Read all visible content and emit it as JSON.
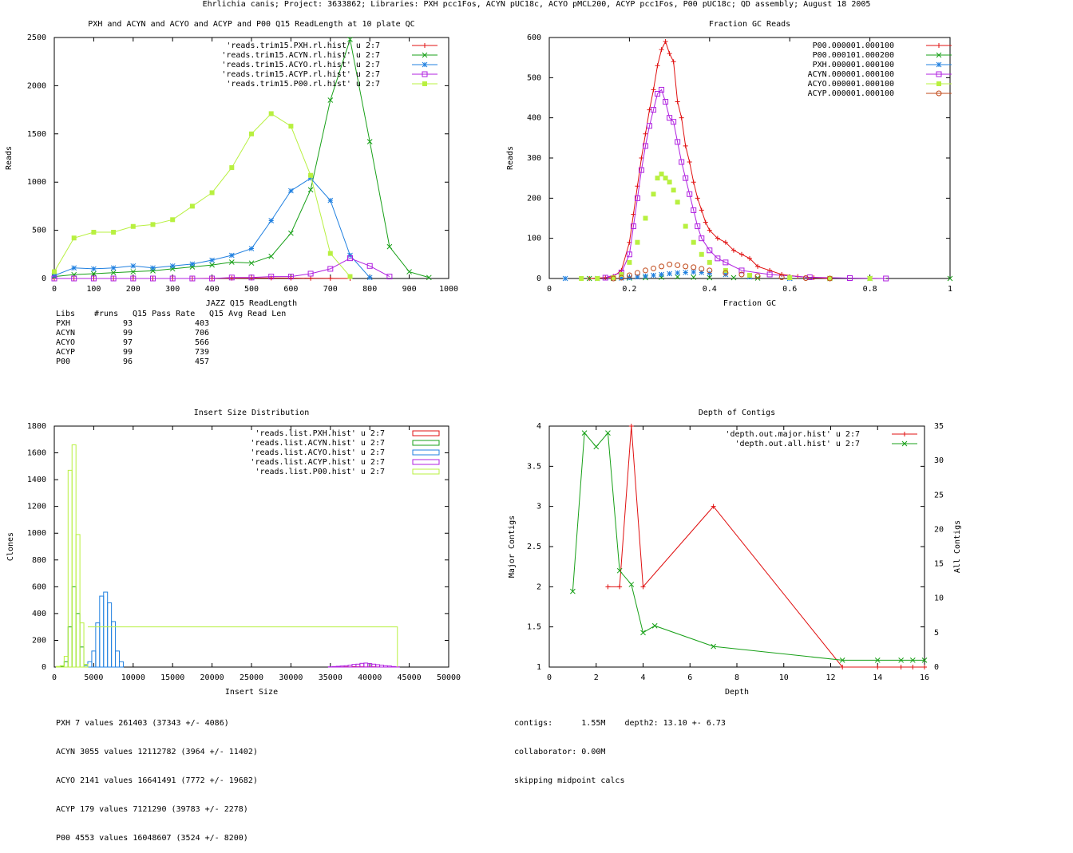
{
  "page_title": "Ehrlichia canis; Project: 3633862; Libraries: PXH pcc1Fos, ACYN pUC18c, ACYO pMCL200, ACYP pcc1Fos, P00 pUC18c; QD assembly; August 18 2005",
  "colors": {
    "red": "#e01010",
    "green": "#18a018",
    "blue": "#2080e0",
    "magenta": "#b020e0",
    "lime": "#b8f040",
    "brown": "#c04818"
  },
  "chart_data": [
    {
      "type": "line",
      "title": "PXH and ACYN and ACYO and ACYP and P00 Q15 ReadLength at 10 plate QC",
      "xlabel": "JAZZ Q15 ReadLength",
      "ylabel": "Reads",
      "xlim": [
        0,
        1000
      ],
      "ylim": [
        0,
        2500
      ],
      "xticks": [
        0,
        100,
        200,
        300,
        400,
        500,
        600,
        700,
        800,
        900,
        1000
      ],
      "yticks": [
        0,
        500,
        1000,
        1500,
        2000,
        2500
      ],
      "series": [
        {
          "name": "'reads.trim15.PXH.rl.hist' u 2:7",
          "color": "red",
          "marker": "plus",
          "x": [
            0,
            50,
            100,
            150,
            200,
            250,
            300,
            350,
            400,
            450,
            500,
            550,
            600,
            650,
            700,
            750
          ],
          "y": [
            0,
            0,
            0,
            0,
            0,
            0,
            0,
            0,
            2,
            3,
            4,
            5,
            4,
            2,
            1,
            0
          ]
        },
        {
          "name": "'reads.trim15.ACYN.rl.hist' u 2:7",
          "color": "green",
          "marker": "x",
          "x": [
            0,
            50,
            100,
            150,
            200,
            250,
            300,
            350,
            400,
            450,
            500,
            550,
            600,
            650,
            700,
            750,
            800,
            850,
            900,
            950
          ],
          "y": [
            20,
            40,
            50,
            60,
            70,
            80,
            100,
            120,
            140,
            170,
            160,
            230,
            470,
            920,
            1850,
            2480,
            1420,
            330,
            70,
            10
          ]
        },
        {
          "name": "'reads.trim15.ACYO.rl.hist' u 2:7",
          "color": "blue",
          "marker": "star",
          "x": [
            0,
            50,
            100,
            150,
            200,
            250,
            300,
            350,
            400,
            450,
            500,
            550,
            600,
            650,
            700,
            750,
            800
          ],
          "y": [
            30,
            110,
            100,
            110,
            130,
            110,
            130,
            150,
            190,
            240,
            310,
            600,
            910,
            1040,
            810,
            240,
            10
          ]
        },
        {
          "name": "'reads.trim15.ACYP.rl.hist' u 2:7",
          "color": "magenta",
          "marker": "square",
          "x": [
            0,
            50,
            100,
            150,
            200,
            250,
            300,
            350,
            400,
            450,
            500,
            550,
            600,
            650,
            700,
            750,
            800,
            850
          ],
          "y": [
            0,
            0,
            0,
            0,
            0,
            0,
            0,
            0,
            0,
            10,
            10,
            20,
            20,
            50,
            100,
            210,
            130,
            20
          ]
        },
        {
          "name": "'reads.trim15.P00.rl.hist' u 2:7",
          "color": "lime",
          "marker": "filled-square",
          "x": [
            0,
            50,
            100,
            150,
            200,
            250,
            300,
            350,
            400,
            450,
            500,
            550,
            600,
            650,
            700,
            750
          ],
          "y": [
            70,
            420,
            480,
            480,
            540,
            560,
            610,
            750,
            890,
            1150,
            1500,
            1710,
            1580,
            1070,
            260,
            20
          ]
        }
      ]
    },
    {
      "type": "scatter",
      "title": "Fraction GC Reads",
      "xlabel": "Fraction GC",
      "ylabel": "Reads",
      "xlim": [
        0,
        1
      ],
      "ylim": [
        0,
        600
      ],
      "xticks": [
        0,
        0.2,
        0.4,
        0.6,
        0.8,
        1
      ],
      "yticks": [
        0,
        100,
        200,
        300,
        400,
        500,
        600
      ],
      "series": [
        {
          "name": "P00.000001.000100",
          "color": "red",
          "marker": "plus",
          "x": [
            0.1,
            0.14,
            0.16,
            0.18,
            0.2,
            0.21,
            0.22,
            0.23,
            0.24,
            0.25,
            0.26,
            0.27,
            0.28,
            0.29,
            0.3,
            0.31,
            0.32,
            0.33,
            0.34,
            0.35,
            0.36,
            0.37,
            0.38,
            0.39,
            0.4,
            0.42,
            0.44,
            0.46,
            0.48,
            0.5,
            0.52,
            0.55,
            0.58,
            0.62,
            0.66,
            0.7
          ],
          "y": [
            0,
            2,
            5,
            20,
            90,
            160,
            230,
            300,
            360,
            420,
            470,
            530,
            570,
            590,
            560,
            540,
            440,
            400,
            330,
            290,
            240,
            200,
            170,
            140,
            120,
            100,
            90,
            70,
            60,
            50,
            30,
            20,
            10,
            5,
            2,
            0
          ]
        },
        {
          "name": "P00.000101.000200",
          "color": "green",
          "marker": "x",
          "x": [
            0.1,
            0.16,
            0.2,
            0.24,
            0.28,
            0.32,
            0.36,
            0.4,
            0.46,
            0.52,
            0.6,
            0.7,
            0.8,
            1.0
          ],
          "y": [
            0,
            0,
            1,
            2,
            3,
            4,
            3,
            2,
            2,
            1,
            1,
            0,
            0,
            0
          ]
        },
        {
          "name": "PXH.000001.000100",
          "color": "blue",
          "marker": "star",
          "x": [
            0.04,
            0.12,
            0.18,
            0.2,
            0.22,
            0.24,
            0.26,
            0.28,
            0.3,
            0.32,
            0.34,
            0.36,
            0.38,
            0.4,
            0.44,
            0.5,
            0.6
          ],
          "y": [
            0,
            0,
            1,
            2,
            4,
            6,
            8,
            10,
            12,
            14,
            15,
            16,
            15,
            13,
            10,
            4,
            0
          ]
        },
        {
          "name": "ACYN.000001.000100",
          "color": "magenta",
          "marker": "square",
          "x": [
            0.14,
            0.18,
            0.2,
            0.21,
            0.22,
            0.23,
            0.24,
            0.25,
            0.26,
            0.27,
            0.28,
            0.29,
            0.3,
            0.31,
            0.32,
            0.33,
            0.34,
            0.35,
            0.36,
            0.37,
            0.38,
            0.4,
            0.42,
            0.44,
            0.48,
            0.55,
            0.65,
            0.75,
            0.84
          ],
          "y": [
            2,
            15,
            60,
            130,
            200,
            270,
            330,
            380,
            420,
            460,
            470,
            440,
            400,
            390,
            340,
            290,
            250,
            210,
            170,
            130,
            100,
            70,
            50,
            40,
            20,
            10,
            3,
            1,
            0
          ]
        },
        {
          "name": "ACYO.000001.000100",
          "color": "lime",
          "marker": "filled-square",
          "x": [
            0.08,
            0.12,
            0.16,
            0.18,
            0.2,
            0.22,
            0.24,
            0.26,
            0.27,
            0.28,
            0.29,
            0.3,
            0.31,
            0.32,
            0.34,
            0.36,
            0.38,
            0.4,
            0.44,
            0.5,
            0.6,
            0.7,
            0.8
          ],
          "y": [
            0,
            0,
            2,
            10,
            40,
            90,
            150,
            210,
            250,
            260,
            250,
            240,
            220,
            190,
            130,
            90,
            60,
            40,
            20,
            8,
            2,
            0,
            0
          ]
        },
        {
          "name": "ACYP.000001.000100",
          "color": "brown",
          "marker": "circle",
          "x": [
            0.16,
            0.18,
            0.2,
            0.22,
            0.24,
            0.26,
            0.28,
            0.3,
            0.32,
            0.34,
            0.36,
            0.38,
            0.4,
            0.44,
            0.48,
            0.52,
            0.58,
            0.64,
            0.7
          ],
          "y": [
            0,
            2,
            8,
            14,
            20,
            25,
            30,
            35,
            33,
            30,
            28,
            24,
            20,
            14,
            10,
            6,
            3,
            1,
            0
          ]
        }
      ]
    },
    {
      "type": "bar",
      "title": "Insert Size Distribution",
      "xlabel": "Insert Size",
      "ylabel": "Clones",
      "xlim": [
        0,
        50000
      ],
      "ylim": [
        0,
        1800
      ],
      "xticks": [
        0,
        5000,
        10000,
        15000,
        20000,
        25000,
        30000,
        35000,
        40000,
        45000,
        50000
      ],
      "yticks": [
        0,
        200,
        400,
        600,
        800,
        1000,
        1200,
        1400,
        1600,
        1800
      ],
      "series": [
        {
          "name": "'reads.list.PXH.hist' u 2:7",
          "color": "red",
          "x": [
            36500,
            37000,
            37500,
            38000,
            38500,
            39000,
            39500,
            40000,
            40500,
            41000
          ],
          "y": [
            1,
            2,
            1,
            3,
            2,
            2,
            1,
            1,
            2,
            1
          ]
        },
        {
          "name": "'reads.list.ACYN.hist' u 2:7",
          "color": "green",
          "x": [
            1000,
            1500,
            2000,
            2500,
            3000,
            3500,
            4000
          ],
          "y": [
            5,
            40,
            300,
            600,
            400,
            150,
            20
          ]
        },
        {
          "name": "'reads.list.ACYO.hist' u 2:7",
          "color": "blue",
          "x": [
            4000,
            4500,
            5000,
            5500,
            6000,
            6500,
            7000,
            7500,
            8000,
            8500
          ],
          "y": [
            10,
            40,
            120,
            330,
            530,
            560,
            480,
            340,
            120,
            40
          ]
        },
        {
          "name": "'reads.list.ACYP.hist' u 2:7",
          "color": "magenta",
          "x": [
            35000,
            35500,
            36000,
            36500,
            37000,
            37500,
            38000,
            38500,
            39000,
            39500,
            40000,
            40500,
            41000,
            41500,
            42000,
            42500,
            43000,
            43500
          ],
          "y": [
            2,
            4,
            6,
            8,
            10,
            14,
            20,
            22,
            28,
            30,
            26,
            22,
            18,
            14,
            10,
            8,
            4,
            2
          ]
        },
        {
          "name": "'reads.list.P00.hist' u 2:7",
          "color": "lime",
          "x": [
            500,
            1000,
            1500,
            2000,
            2500,
            3000,
            3500,
            4000
          ],
          "y": [
            5,
            10,
            80,
            1470,
            1660,
            990,
            330,
            20
          ],
          "tail_level": 300,
          "tail_end": 43500
        }
      ]
    },
    {
      "type": "line",
      "title": "Depth of Contigs",
      "xlabel": "Depth",
      "ylabel": "Major Contigs",
      "y2label": "All Contigs",
      "xlim": [
        0,
        16
      ],
      "ylim": [
        1,
        4
      ],
      "y2lim": [
        0,
        35
      ],
      "xticks": [
        0,
        2,
        4,
        6,
        8,
        10,
        12,
        14,
        16
      ],
      "yticks": [
        1,
        1.5,
        2,
        2.5,
        3,
        3.5,
        4
      ],
      "y2ticks": [
        0,
        5,
        10,
        15,
        20,
        25,
        30,
        35
      ],
      "series": [
        {
          "name": "'depth.out.major.hist' u 2:7",
          "color": "red",
          "marker": "plus",
          "axis": "y",
          "x": [
            2.5,
            3,
            3.5,
            4,
            7,
            12.5,
            14,
            15,
            15.5,
            16
          ],
          "y": [
            2,
            2,
            4,
            2,
            3,
            1,
            1,
            1,
            1,
            1
          ]
        },
        {
          "name": "'depth.out.all.hist' u 2:7",
          "color": "green",
          "marker": "x",
          "axis": "y2",
          "x": [
            1,
            1.5,
            2,
            2.5,
            3,
            3.5,
            4,
            4.5,
            7,
            12.5,
            14,
            15,
            15.5,
            16
          ],
          "y": [
            11,
            34,
            32,
            34,
            14,
            12,
            5,
            6,
            3,
            1,
            1,
            1,
            1,
            1
          ]
        }
      ]
    }
  ],
  "readlen_table": {
    "header": [
      "Libs",
      "#runs",
      "Q15 Pass Rate",
      "Q15 Avg Read Len"
    ],
    "rows": [
      {
        "lib": "PXH",
        "runs": "93",
        "len": "403"
      },
      {
        "lib": "ACYN",
        "runs": "99",
        "len": "706"
      },
      {
        "lib": "ACYO",
        "runs": "97",
        "len": "566"
      },
      {
        "lib": "ACYP",
        "runs": "99",
        "len": "739"
      },
      {
        "lib": "P00",
        "runs": "96",
        "len": "457"
      }
    ]
  },
  "insert_stats": [
    "PXH 7 values 261403 (37343 +/- 4086)",
    "ACYN 3055 values 12112782 (3964 +/- 11402)",
    "ACYO 2141 values 16641491 (7772 +/- 19682)",
    "ACYP 179 values 7121290 (39783 +/- 2278)",
    "P00 4553 values 16048607 (3524 +/- 8200)"
  ],
  "depth_stats": {
    "contigs": "contigs:      1.55M",
    "depth2": "depth2: 13.10 +- 6.73",
    "collaborator": "collaborator: 0.00M",
    "midpoint": "skipping midpoint calcs"
  }
}
